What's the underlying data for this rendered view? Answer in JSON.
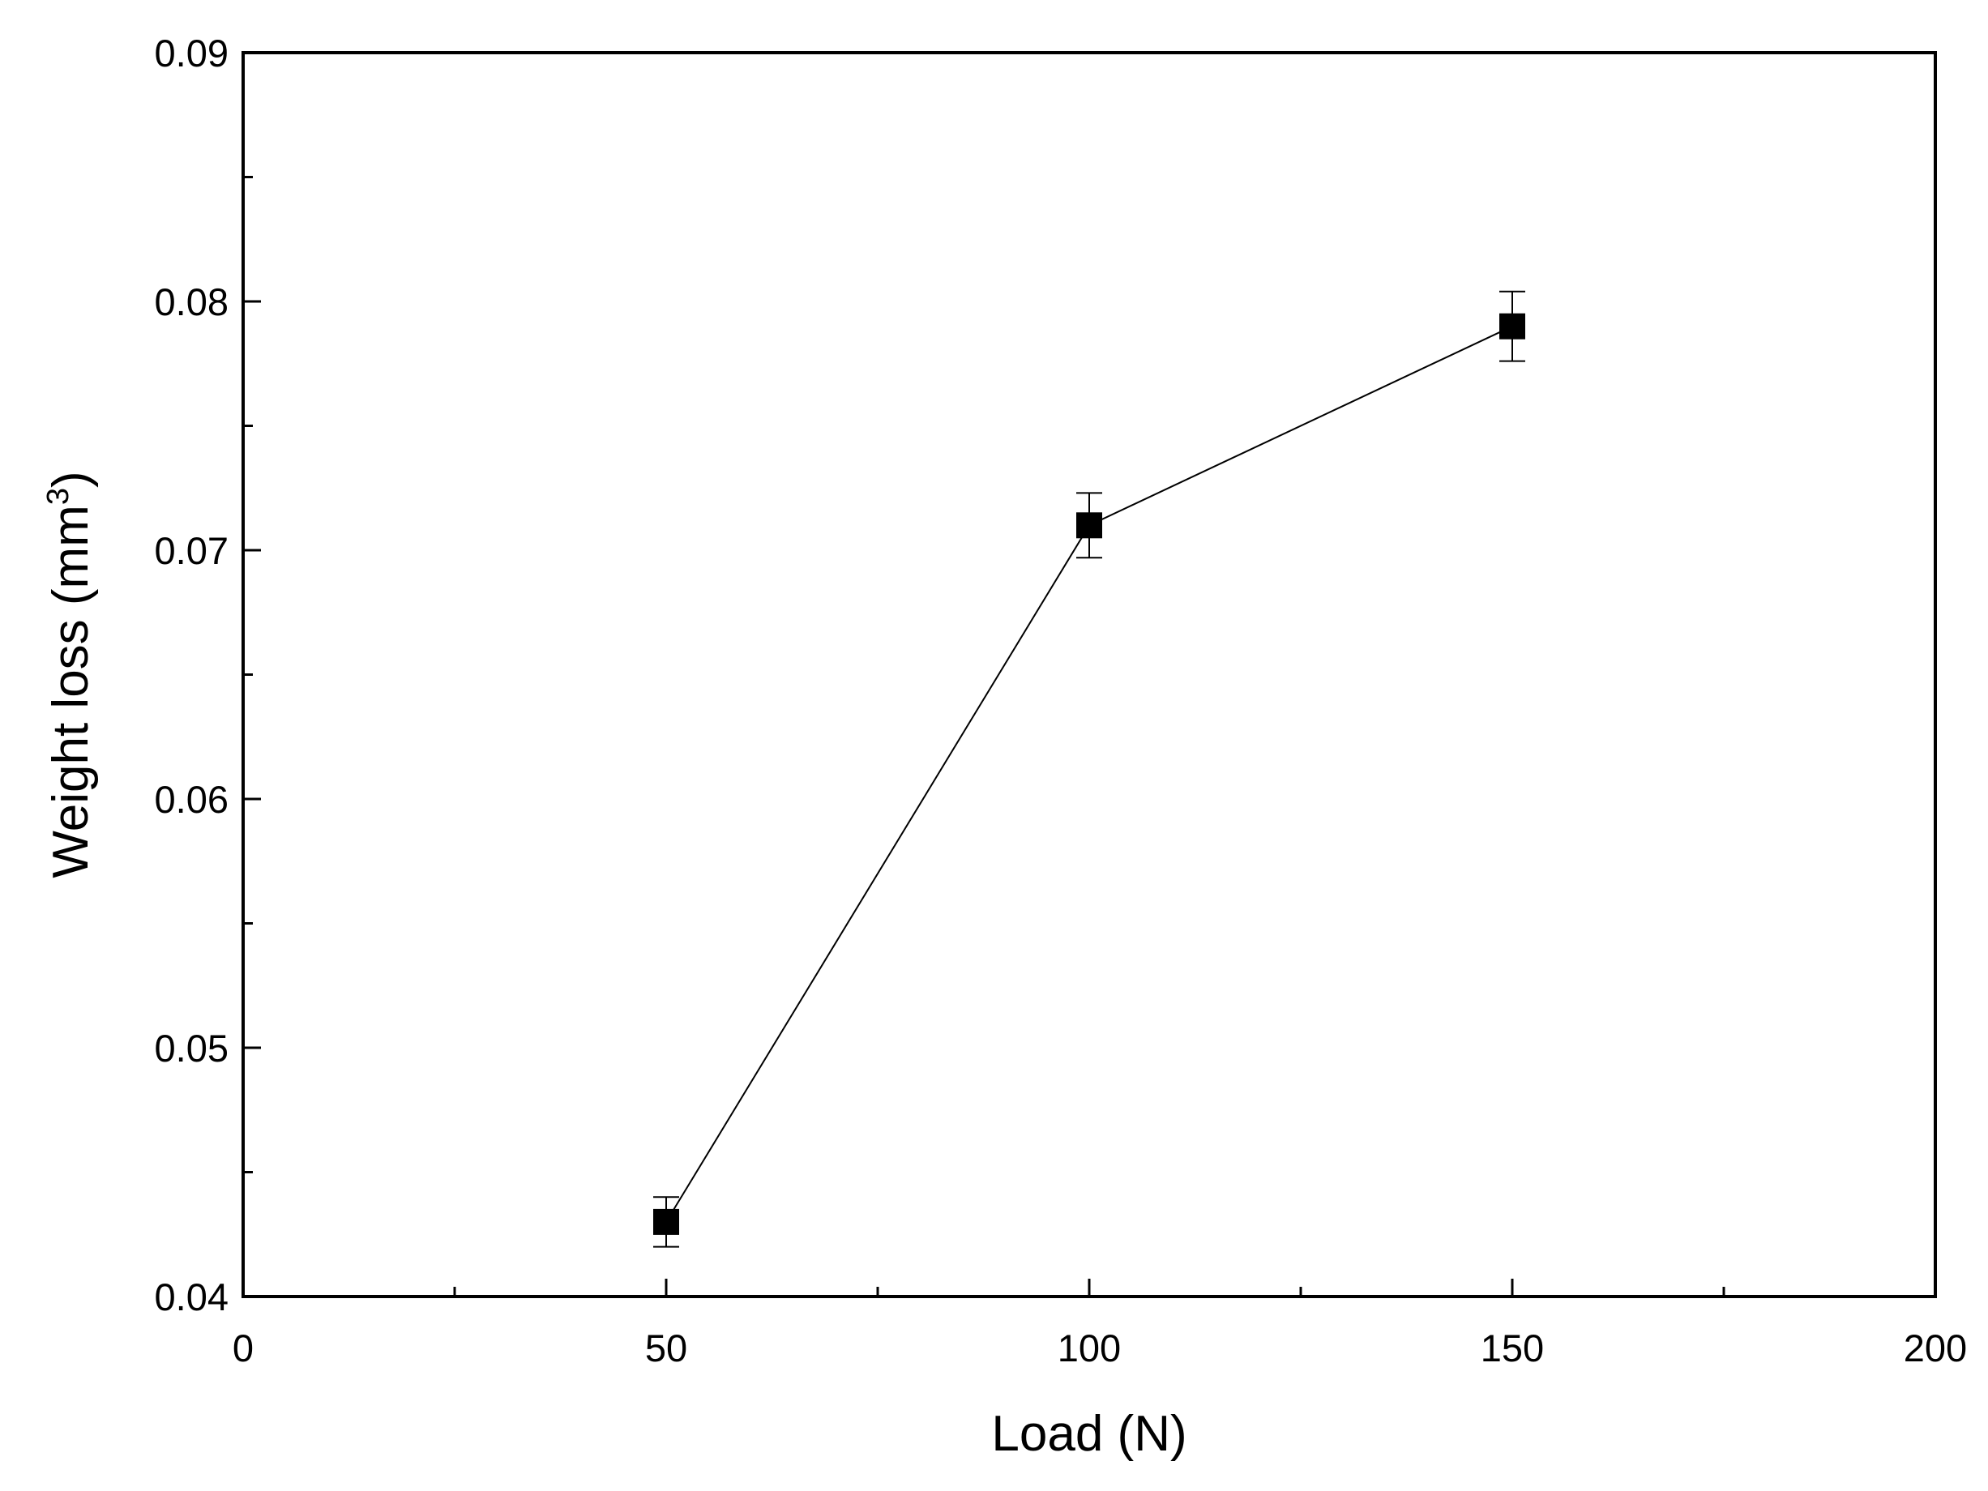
{
  "chart_data": {
    "type": "line",
    "title": "",
    "xlabel": "Load (N)",
    "ylabel_text": "Weight loss (mm",
    "ylabel_superscript": "3",
    "ylabel_suffix": ")",
    "xlim": [
      0,
      200
    ],
    "ylim": [
      0.04,
      0.09
    ],
    "xticks": [
      0,
      50,
      100,
      150,
      200
    ],
    "xtick_labels": [
      "0",
      "50",
      "100",
      "150",
      "200"
    ],
    "xminor_ticks": [
      25,
      75,
      125,
      175
    ],
    "yticks": [
      0.04,
      0.05,
      0.06,
      0.07,
      0.08,
      0.09
    ],
    "ytick_labels": [
      "0.04",
      "0.05",
      "0.06",
      "0.07",
      "0.08",
      "0.09"
    ],
    "yminor_ticks": [
      0.045,
      0.055,
      0.065,
      0.075,
      0.085
    ],
    "grid": false,
    "legend": "none",
    "series": [
      {
        "x": [
          50,
          100,
          150
        ],
        "y": [
          0.043,
          0.071,
          0.079
        ],
        "error": [
          0.001,
          0.0013,
          0.0014
        ],
        "marker": "square",
        "color": "#000000"
      }
    ]
  }
}
